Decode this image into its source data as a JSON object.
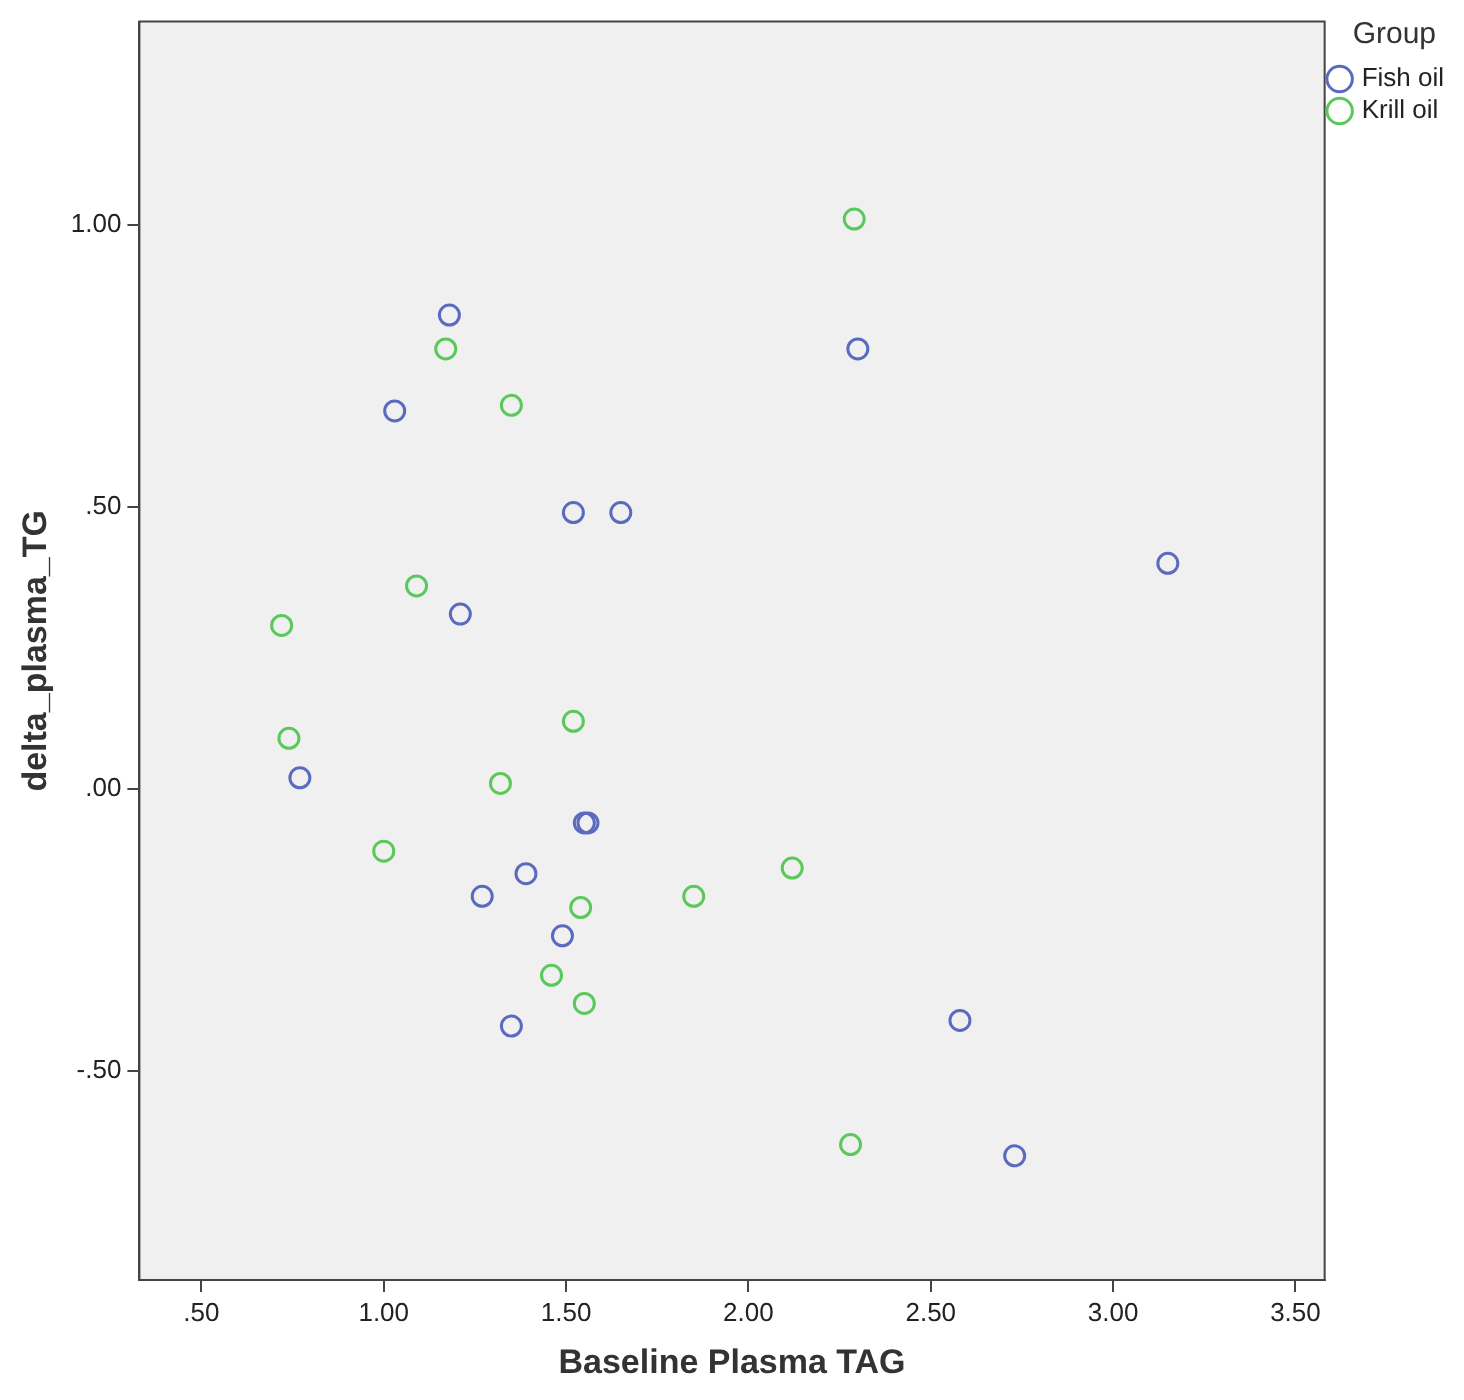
{
  "chart_data": {
    "type": "scatter",
    "xlabel": "Baseline Plasma TAG",
    "ylabel": "delta_plasma_TG",
    "legend_title": "Group",
    "legend": "top right",
    "marker": "circle",
    "grid": false,
    "xlim": [
      0.33,
      3.58
    ],
    "xticks": [
      {
        "value": 0.5,
        "label": ".50"
      },
      {
        "value": 1,
        "label": "1.00"
      },
      {
        "value": 1.5,
        "label": "1.50"
      },
      {
        "value": 2,
        "label": "2.00"
      },
      {
        "value": 2.5,
        "label": "2.50"
      },
      {
        "value": 3,
        "label": "3.00"
      },
      {
        "value": 3.5,
        "label": "3.50"
      }
    ],
    "ylim": [
      -0.87,
      1.36
    ],
    "yticks": [
      {
        "value": -0.5,
        "label": "-.50"
      },
      {
        "value": 0,
        "label": ".00"
      },
      {
        "value": 0.5,
        "label": ".50"
      },
      {
        "value": 1,
        "label": "1.00"
      }
    ],
    "series": [
      {
        "name": "Fish oil",
        "color": "#5a6bbf",
        "x": [
          1.18,
          1.03,
          2.3,
          1.52,
          1.65,
          3.15,
          1.21,
          0.77,
          1.55,
          1.56,
          1.39,
          1.27,
          1.49,
          1.35,
          2.58,
          2.73
        ],
        "values": [
          0.84,
          0.67,
          0.78,
          0.49,
          0.49,
          0.4,
          0.31,
          0.02,
          -0.06,
          -0.06,
          -0.15,
          -0.19,
          -0.26,
          -0.42,
          -0.41,
          -0.65
        ]
      },
      {
        "name": "Krill oil",
        "color": "#5ac85a",
        "x": [
          2.29,
          1.17,
          1.35,
          1.09,
          0.72,
          1.52,
          0.74,
          1.32,
          1.0,
          1.54,
          1.85,
          2.12,
          1.46,
          1.55,
          2.28
        ],
        "values": [
          1.01,
          0.78,
          0.68,
          0.36,
          0.29,
          0.12,
          0.09,
          0.01,
          -0.11,
          -0.21,
          -0.19,
          -0.14,
          -0.33,
          -0.38,
          -0.63
        ]
      }
    ]
  }
}
